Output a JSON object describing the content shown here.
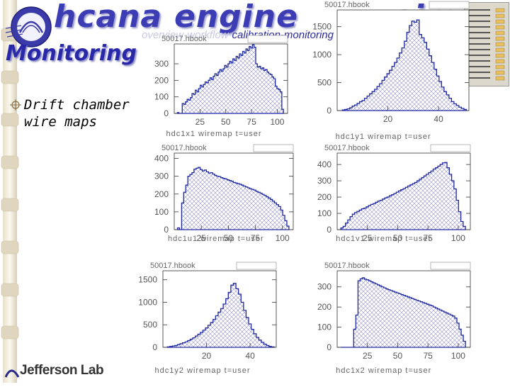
{
  "header": {
    "words": [
      "hcana",
      "engine",
      "simc"
    ],
    "subnav": {
      "overview": "overview",
      "workflow": "workflow",
      "calibration": "calibration",
      "monitoring": "monitoring",
      "sep": "-"
    }
  },
  "slide": {
    "title": "Monitoring",
    "bullet_text": "Drift chamber wire maps"
  },
  "footer": {
    "lab_name": "Jefferson Lab"
  },
  "colors": {
    "title": "#2828a8",
    "histogram_line": "#1e28a0",
    "hatch": "#9090d0"
  },
  "chart_data": [
    {
      "type": "bar",
      "title": "hdc1x1 wiremap t=user",
      "header_label": "50017.hbook",
      "x_ticks": [
        25,
        50,
        75,
        100
      ],
      "y_ticks": [
        0,
        100,
        200,
        300
      ],
      "xlim": [
        0,
        110
      ],
      "ylim": [
        0,
        420
      ],
      "values": [
        5,
        0,
        0,
        60,
        55,
        70,
        85,
        80,
        95,
        120,
        115,
        140,
        130,
        150,
        170,
        160,
        175,
        190,
        185,
        200,
        215,
        205,
        225,
        240,
        230,
        250,
        265,
        255,
        270,
        290,
        280,
        300,
        315,
        305,
        330,
        320,
        345,
        335,
        360,
        350,
        375,
        365,
        390,
        380,
        405,
        395,
        415,
        400,
        300,
        280,
        285,
        270,
        275,
        260,
        265,
        250,
        240,
        235,
        220,
        210,
        165,
        150,
        145,
        130,
        25
      ]
    },
    {
      "type": "bar",
      "title": "hdc1y1 wiremap t=user",
      "header_label": "50017.hbook",
      "x_ticks": [
        20,
        40
      ],
      "y_ticks": [
        0,
        500,
        1000,
        1500
      ],
      "xlim": [
        0,
        52
      ],
      "ylim": [
        0,
        1800
      ],
      "values": [
        10,
        20,
        30,
        50,
        80,
        100,
        130,
        160,
        180,
        220,
        260,
        300,
        340,
        380,
        430,
        480,
        540,
        600,
        660,
        720,
        790,
        860,
        940,
        1030,
        1120,
        1240,
        1400,
        1520,
        1600,
        1580,
        1620,
        1360,
        1300,
        1220,
        1100,
        980,
        860,
        740,
        620,
        520,
        420,
        340,
        280,
        220,
        160,
        120,
        90,
        60,
        40,
        20
      ]
    },
    {
      "type": "bar",
      "title": "hdc1u1 wiremap t=user",
      "header_label": "50017.hbook",
      "x_ticks": [
        25,
        50,
        75,
        100
      ],
      "y_ticks": [
        0,
        100,
        200,
        300,
        400
      ],
      "xlim": [
        0,
        110
      ],
      "ylim": [
        0,
        430
      ],
      "values": [
        10,
        0,
        150,
        210,
        250,
        300,
        310,
        320,
        340,
        345,
        350,
        338,
        330,
        335,
        325,
        318,
        320,
        312,
        305,
        300,
        298,
        292,
        288,
        285,
        280,
        276,
        272,
        265,
        262,
        258,
        255,
        250,
        245,
        240,
        235,
        230,
        226,
        222,
        215,
        210,
        205,
        198,
        192,
        185,
        178,
        170,
        160,
        150,
        140,
        130,
        110,
        80,
        50,
        20
      ]
    },
    {
      "type": "bar",
      "title": "hdc1v1 wiremap t=user",
      "header_label": "50017.hbook",
      "x_ticks": [
        25,
        50,
        75,
        100
      ],
      "y_ticks": [
        0,
        100,
        200,
        300,
        400
      ],
      "xlim": [
        0,
        110
      ],
      "ylim": [
        0,
        470
      ],
      "values": [
        10,
        20,
        40,
        60,
        80,
        95,
        105,
        112,
        120,
        128,
        132,
        140,
        148,
        155,
        160,
        168,
        175,
        180,
        188,
        195,
        200,
        208,
        215,
        222,
        230,
        238,
        245,
        252,
        260,
        268,
        275,
        282,
        290,
        300,
        310,
        320,
        330,
        340,
        350,
        360,
        372,
        380,
        390,
        400,
        410,
        412,
        380,
        340,
        300,
        250,
        180,
        110,
        50,
        20
      ]
    },
    {
      "type": "bar",
      "title": "hdc1y2 wiremap t=user",
      "header_label": "50017.hbook",
      "x_ticks": [
        20,
        40
      ],
      "y_ticks": [
        0,
        500,
        1000,
        1500
      ],
      "xlim": [
        0,
        52
      ],
      "ylim": [
        0,
        1700
      ],
      "values": [
        10,
        20,
        30,
        40,
        60,
        80,
        100,
        120,
        150,
        180,
        210,
        250,
        290,
        330,
        380,
        430,
        490,
        550,
        620,
        700,
        780,
        860,
        960,
        1080,
        1220,
        1380,
        1420,
        1300,
        1180,
        1000,
        820,
        660,
        520,
        400,
        300,
        220,
        160,
        110,
        70,
        40,
        20,
        10
      ]
    },
    {
      "type": "bar",
      "title": "hdc1x2 wiremap t=user",
      "header_label": "50017.hbook",
      "x_ticks": [
        25,
        50,
        75,
        100
      ],
      "y_ticks": [
        0,
        100,
        200,
        300
      ],
      "xlim": [
        0,
        110
      ],
      "ylim": [
        0,
        380
      ],
      "values": [
        0,
        0,
        0,
        0,
        0,
        0,
        90,
        160,
        330,
        340,
        345,
        338,
        335,
        330,
        325,
        320,
        315,
        310,
        305,
        300,
        295,
        290,
        286,
        282,
        278,
        274,
        270,
        266,
        262,
        258,
        254,
        250,
        246,
        242,
        238,
        234,
        230,
        226,
        222,
        218,
        214,
        210,
        206,
        200,
        195,
        190,
        185,
        180,
        175,
        170,
        165,
        160,
        155,
        145,
        120,
        90,
        60,
        30
      ]
    }
  ]
}
